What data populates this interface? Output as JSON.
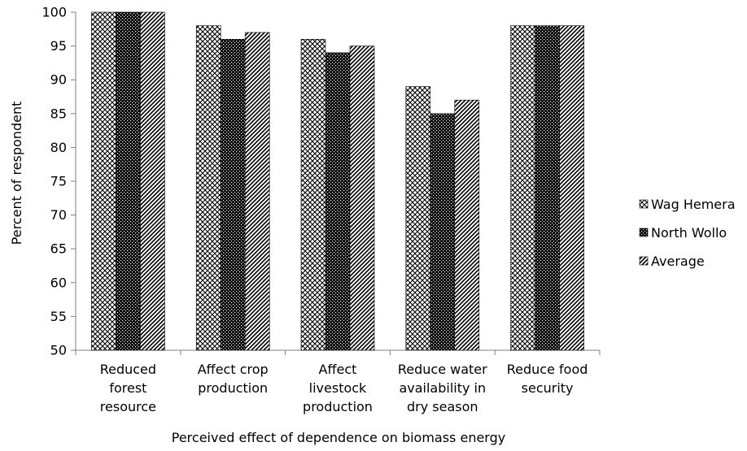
{
  "chart_data": {
    "type": "bar",
    "title": "",
    "xlabel": "Perceived effect of dependence on biomass energy",
    "ylabel": "Percent of respondent",
    "ylim": [
      50,
      100
    ],
    "yticks": [
      50,
      55,
      60,
      65,
      70,
      75,
      80,
      85,
      90,
      95,
      100
    ],
    "grid": false,
    "legend_position": "right",
    "categories": [
      [
        "Reduced",
        "forest",
        "resource"
      ],
      [
        "Affect crop",
        "production"
      ],
      [
        "Affect",
        "livestock",
        "production"
      ],
      [
        "Reduce water",
        "availability in",
        "dry season"
      ],
      [
        "Reduce food",
        "security"
      ]
    ],
    "series": [
      {
        "name": "Wag Hemera",
        "pattern": "crosshatch",
        "values": [
          100,
          98,
          96,
          89,
          98
        ]
      },
      {
        "name": "North Wollo",
        "pattern": "dense-check",
        "values": [
          100,
          96,
          94,
          85,
          98
        ]
      },
      {
        "name": "Average",
        "pattern": "diagonal",
        "values": [
          100,
          97,
          95,
          87,
          98
        ]
      }
    ]
  }
}
